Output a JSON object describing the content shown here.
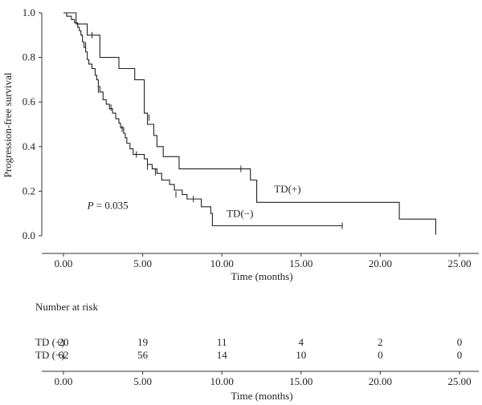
{
  "chart_data": {
    "type": "line",
    "ylabel": "Progression-free survival",
    "xlabel": "Time (months)",
    "xlim": [
      0,
      25
    ],
    "ylim": [
      0,
      1
    ],
    "x_ticks": [
      0,
      5,
      10,
      15,
      20,
      25
    ],
    "x_tick_labels": [
      "0.00",
      "5.00",
      "10.00",
      "15.00",
      "20.00",
      "25.00"
    ],
    "y_ticks": [
      0,
      0.2,
      0.4,
      0.6,
      0.8,
      1.0
    ],
    "y_tick_labels": [
      "0.0",
      "0.2",
      "0.4",
      "0.6",
      "0.8",
      "1.0"
    ],
    "annotation": {
      "p_label": "P",
      "p_value": " = 0.035",
      "x": 1.5,
      "y": 0.12
    },
    "series": [
      {
        "name": "TD(+)",
        "label_pos": {
          "x": 13.3,
          "y": 0.195
        },
        "steps": [
          [
            0,
            1.0
          ],
          [
            0.8,
            0.95
          ],
          [
            1.5,
            0.9
          ],
          [
            2.3,
            0.8
          ],
          [
            3.5,
            0.75
          ],
          [
            4.5,
            0.7
          ],
          [
            5.1,
            0.55
          ],
          [
            5.3,
            0.5
          ],
          [
            5.7,
            0.45
          ],
          [
            5.9,
            0.4
          ],
          [
            6.3,
            0.355
          ],
          [
            7.3,
            0.3
          ],
          [
            11.8,
            0.25
          ],
          [
            12.2,
            0.15
          ],
          [
            21.2,
            0.075
          ],
          [
            23.5,
            0.005
          ]
        ],
        "censors": [
          [
            1.8,
            0.9
          ],
          [
            5.4,
            0.53
          ],
          [
            11.2,
            0.3
          ]
        ]
      },
      {
        "name": "TD(−)",
        "label_pos": {
          "x": 10.3,
          "y": 0.085
        },
        "steps": [
          [
            0,
            1.0
          ],
          [
            0.2,
            0.985
          ],
          [
            0.5,
            0.97
          ],
          [
            0.7,
            0.955
          ],
          [
            0.9,
            0.935
          ],
          [
            1.0,
            0.92
          ],
          [
            1.1,
            0.9
          ],
          [
            1.2,
            0.87
          ],
          [
            1.3,
            0.845
          ],
          [
            1.4,
            0.825
          ],
          [
            1.5,
            0.79
          ],
          [
            1.6,
            0.77
          ],
          [
            1.8,
            0.75
          ],
          [
            2.0,
            0.72
          ],
          [
            2.1,
            0.7
          ],
          [
            2.2,
            0.67
          ],
          [
            2.3,
            0.645
          ],
          [
            2.5,
            0.61
          ],
          [
            2.7,
            0.59
          ],
          [
            2.9,
            0.57
          ],
          [
            3.1,
            0.55
          ],
          [
            3.3,
            0.525
          ],
          [
            3.5,
            0.505
          ],
          [
            3.6,
            0.485
          ],
          [
            3.8,
            0.46
          ],
          [
            3.9,
            0.44
          ],
          [
            4.0,
            0.415
          ],
          [
            4.2,
            0.39
          ],
          [
            4.4,
            0.365
          ],
          [
            5.1,
            0.345
          ],
          [
            5.3,
            0.32
          ],
          [
            5.6,
            0.3
          ],
          [
            5.9,
            0.28
          ],
          [
            6.2,
            0.25
          ],
          [
            6.7,
            0.23
          ],
          [
            7.0,
            0.205
          ],
          [
            7.5,
            0.185
          ],
          [
            7.8,
            0.165
          ],
          [
            8.7,
            0.13
          ],
          [
            9.3,
            0.1
          ],
          [
            9.4,
            0.045
          ]
        ],
        "censors": [
          [
            1.4,
            0.855
          ],
          [
            2.2,
            0.655
          ],
          [
            3.0,
            0.575
          ],
          [
            3.7,
            0.48
          ],
          [
            4.6,
            0.365
          ],
          [
            5.3,
            0.31
          ],
          [
            5.8,
            0.285
          ],
          [
            7.1,
            0.185
          ],
          [
            8.2,
            0.165
          ],
          [
            17.6,
            0.045
          ]
        ],
        "end_x": 17.6
      }
    ]
  },
  "risk_table": {
    "title": "Number at risk",
    "times": [
      0,
      5,
      10,
      15,
      20,
      25
    ],
    "rows": [
      {
        "label": "TD (+)",
        "counts": [
          "20",
          "19",
          "11",
          "4",
          "2",
          "0"
        ]
      },
      {
        "label": "TD (−)",
        "counts": [
          "62",
          "56",
          "14",
          "10",
          "0",
          "0"
        ]
      }
    ],
    "x_tick_labels": [
      "0.00",
      "5.00",
      "10.00",
      "15.00",
      "20.00",
      "25.00"
    ],
    "xlabel": "Time (months)"
  }
}
